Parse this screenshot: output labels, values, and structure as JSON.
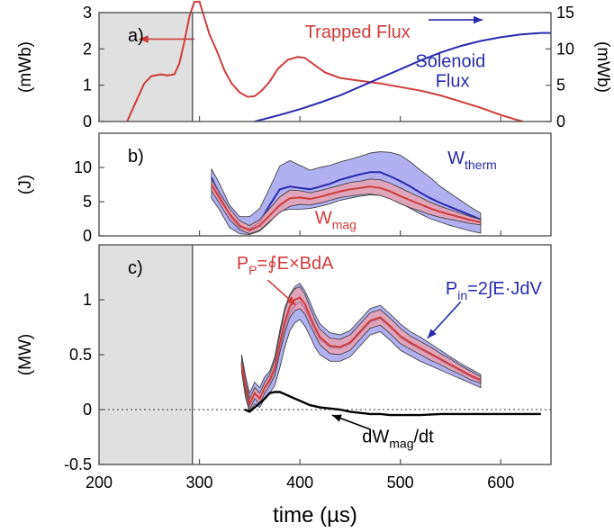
{
  "colors": {
    "red": "#d03c3c",
    "blue": "#2a2ab0",
    "black": "#000000",
    "gray": "#e0e0e0",
    "band_blue": "#a8a8f0",
    "band_red": "#f0a0a8"
  },
  "xaxis": {
    "label": "time (µs)",
    "ticks": [
      "200",
      "300",
      "400",
      "500",
      "600"
    ]
  },
  "chart_data": [
    {
      "type": "line",
      "panel": "a)",
      "xlim": [
        200,
        650
      ],
      "ylim": [
        0,
        3
      ],
      "ylabel": "(mWb)",
      "ylabel_right": "(mWb)",
      "yticks": [
        "0",
        "1",
        "2",
        "3"
      ],
      "yticks_right": [
        "0",
        "5",
        "10",
        "15"
      ],
      "ylim_right": [
        0,
        15
      ],
      "shaded_region": [
        200,
        293
      ],
      "annotations": [
        {
          "text": "Trapped Flux",
          "x": 405,
          "y": 2.3,
          "color": "red"
        },
        {
          "text": "Solenoid",
          "x": 515,
          "y": 1.5,
          "color": "blue"
        },
        {
          "text": "Flux",
          "x": 535,
          "y": 0.95,
          "color": "blue"
        }
      ],
      "series": [
        {
          "name": "Trapped Flux",
          "color": "red",
          "x": [
            228,
            236,
            245,
            252,
            258,
            262,
            268,
            275,
            280,
            285,
            290,
            295,
            300,
            305,
            310,
            318,
            325,
            332,
            340,
            348,
            355,
            362,
            370,
            378,
            388,
            398,
            405,
            415,
            425,
            440,
            460,
            480,
            500,
            520,
            540,
            560,
            580,
            600,
            612,
            622
          ],
          "y": [
            0.0,
            0.5,
            1.05,
            1.25,
            1.28,
            1.3,
            1.27,
            1.3,
            1.6,
            2.2,
            2.9,
            3.3,
            3.3,
            2.85,
            2.4,
            1.9,
            1.4,
            1.05,
            0.8,
            0.68,
            0.7,
            0.85,
            1.1,
            1.45,
            1.7,
            1.78,
            1.75,
            1.55,
            1.35,
            1.2,
            1.12,
            1.05,
            0.95,
            0.85,
            0.72,
            0.55,
            0.38,
            0.18,
            0.08,
            0.0
          ]
        },
        {
          "name": "Solenoid Flux",
          "color": "blue",
          "axis": "right",
          "x": [
            355,
            380,
            400,
            420,
            440,
            460,
            480,
            500,
            520,
            540,
            560,
            580,
            600,
            620,
            640,
            650
          ],
          "y": [
            0.0,
            0.9,
            1.7,
            2.6,
            3.6,
            4.8,
            6.0,
            7.2,
            8.4,
            9.5,
            10.4,
            11.1,
            11.6,
            12.0,
            12.2,
            12.2
          ]
        }
      ],
      "arrows": [
        {
          "color": "red",
          "x_from": 295,
          "x_to": 240,
          "y": 2.27
        },
        {
          "color": "blue",
          "x_from": 528,
          "x_to": 582,
          "y": 2.8
        }
      ]
    },
    {
      "type": "area",
      "panel": "b)",
      "xlim": [
        200,
        650
      ],
      "ylim": [
        0,
        15
      ],
      "ylabel": "(J)",
      "yticks": [
        "0",
        "5",
        "10"
      ],
      "annotations": [
        {
          "text": "W",
          "sub": "therm",
          "x": 547,
          "y": 10.5,
          "color": "blue"
        },
        {
          "text": "W",
          "sub": "mag",
          "x": 415,
          "y": 1.8,
          "color": "red"
        }
      ],
      "x": [
        312,
        320,
        330,
        340,
        350,
        360,
        370,
        380,
        390,
        400,
        410,
        420,
        430,
        440,
        450,
        460,
        470,
        480,
        490,
        500,
        510,
        520,
        530,
        540,
        550,
        560,
        570,
        580
      ],
      "series": [
        {
          "name": "W_therm",
          "color": "blue",
          "mean": [
            8.5,
            6.0,
            3.0,
            1.2,
            1.0,
            2.0,
            4.5,
            6.8,
            7.2,
            7.0,
            6.8,
            7.2,
            7.6,
            8.2,
            8.6,
            9.0,
            9.3,
            9.3,
            8.7,
            8.0,
            7.2,
            6.3,
            5.5,
            4.8,
            4.2,
            3.6,
            3.0,
            2.4
          ],
          "upper": [
            9.8,
            7.6,
            4.5,
            2.8,
            2.8,
            4.0,
            7.0,
            10.2,
            11.0,
            10.3,
            9.6,
            10.0,
            10.3,
            10.8,
            11.2,
            11.6,
            12.1,
            12.3,
            12.2,
            11.8,
            10.8,
            9.6,
            8.5,
            7.2,
            6.2,
            5.2,
            4.2,
            3.3
          ],
          "lower": [
            5.5,
            3.8,
            1.2,
            0.3,
            0.2,
            0.7,
            2.0,
            3.6,
            3.9,
            3.9,
            4.0,
            4.3,
            4.7,
            5.2,
            5.5,
            5.8,
            6.0,
            5.9,
            5.4,
            4.8,
            4.0,
            3.2,
            2.5,
            2.0,
            1.5,
            1.1,
            0.7,
            0.4
          ]
        },
        {
          "name": "W_mag",
          "color": "red",
          "mean": [
            7.5,
            5.5,
            3.2,
            1.5,
            0.8,
            1.5,
            3.0,
            4.5,
            5.5,
            5.6,
            5.4,
            5.7,
            6.1,
            6.5,
            6.8,
            7.0,
            7.2,
            7.0,
            6.5,
            5.8,
            5.2,
            4.6,
            4.0,
            3.5,
            3.1,
            2.7,
            2.3,
            2.0
          ],
          "upper": [
            8.3,
            6.3,
            4.0,
            2.2,
            1.5,
            2.4,
            4.0,
            5.7,
            6.7,
            6.6,
            6.3,
            6.6,
            7.0,
            7.4,
            7.8,
            8.0,
            8.3,
            8.2,
            7.7,
            7.0,
            6.3,
            5.6,
            4.9,
            4.3,
            3.8,
            3.3,
            2.8,
            2.4
          ],
          "lower": [
            6.6,
            4.7,
            2.4,
            0.9,
            0.3,
            0.8,
            2.1,
            3.4,
            4.3,
            4.6,
            4.5,
            4.8,
            5.2,
            5.6,
            5.8,
            6.0,
            6.1,
            5.9,
            5.4,
            4.7,
            4.1,
            3.6,
            3.1,
            2.7,
            2.4,
            2.1,
            1.8,
            1.6
          ]
        }
      ]
    },
    {
      "type": "area",
      "panel": "c)",
      "xlim": [
        200,
        650
      ],
      "ylim": [
        -0.5,
        1.5
      ],
      "ylabel": "(MW)",
      "yticks": [
        "-0.5",
        "0",
        "0.5",
        "1"
      ],
      "shaded_region": [
        200,
        293
      ],
      "annotations": [
        {
          "text": "P",
          "sub": "P",
          "suffix": "=∮E×BdA",
          "x": 337,
          "y": 1.28,
          "color": "red"
        },
        {
          "text": "P",
          "sub": "in",
          "suffix": "=2∫E·JdV",
          "x": 545,
          "y": 1.05,
          "color": "blue"
        },
        {
          "text": "dW",
          "sub": "mag",
          "suffix": "/dt",
          "x": 462,
          "y": -0.3,
          "color": "black"
        }
      ],
      "x": [
        342,
        346,
        350,
        355,
        360,
        365,
        370,
        375,
        380,
        385,
        390,
        395,
        400,
        405,
        410,
        415,
        420,
        430,
        440,
        450,
        460,
        470,
        480,
        490,
        500,
        510,
        520,
        530,
        540,
        550,
        560,
        570,
        580
      ],
      "series": [
        {
          "name": "P_in",
          "color": "blue",
          "mean": [
            0.42,
            0.2,
            0.05,
            0.15,
            0.1,
            0.2,
            0.25,
            0.35,
            0.55,
            0.75,
            0.88,
            0.95,
            0.98,
            0.92,
            0.82,
            0.72,
            0.64,
            0.57,
            0.56,
            0.6,
            0.7,
            0.8,
            0.83,
            0.75,
            0.66,
            0.6,
            0.55,
            0.5,
            0.45,
            0.4,
            0.35,
            0.3,
            0.26
          ],
          "upper": [
            0.5,
            0.3,
            0.15,
            0.25,
            0.2,
            0.3,
            0.35,
            0.48,
            0.72,
            0.93,
            1.05,
            1.12,
            1.15,
            1.08,
            0.98,
            0.87,
            0.78,
            0.7,
            0.68,
            0.72,
            0.82,
            0.92,
            0.95,
            0.87,
            0.78,
            0.71,
            0.66,
            0.6,
            0.54,
            0.48,
            0.42,
            0.37,
            0.32
          ],
          "lower": [
            0.34,
            0.1,
            -0.02,
            0.05,
            0.02,
            0.1,
            0.15,
            0.22,
            0.38,
            0.57,
            0.72,
            0.79,
            0.82,
            0.76,
            0.67,
            0.57,
            0.5,
            0.44,
            0.44,
            0.48,
            0.58,
            0.68,
            0.71,
            0.63,
            0.54,
            0.49,
            0.44,
            0.4,
            0.36,
            0.32,
            0.28,
            0.24,
            0.2
          ]
        },
        {
          "name": "P_P",
          "color": "red",
          "mean": [
            0.42,
            0.2,
            0.05,
            0.15,
            0.1,
            0.2,
            0.27,
            0.38,
            0.6,
            0.8,
            0.94,
            1.0,
            1.02,
            0.96,
            0.85,
            0.75,
            0.66,
            0.58,
            0.57,
            0.61,
            0.71,
            0.81,
            0.84,
            0.76,
            0.67,
            0.61,
            0.56,
            0.51,
            0.46,
            0.41,
            0.36,
            0.31,
            0.27
          ],
          "upper": [
            0.46,
            0.25,
            0.1,
            0.2,
            0.15,
            0.25,
            0.32,
            0.45,
            0.68,
            0.9,
            1.04,
            1.1,
            1.12,
            1.05,
            0.93,
            0.82,
            0.73,
            0.65,
            0.64,
            0.68,
            0.78,
            0.88,
            0.91,
            0.83,
            0.74,
            0.67,
            0.62,
            0.57,
            0.51,
            0.46,
            0.4,
            0.35,
            0.3
          ],
          "lower": [
            0.38,
            0.15,
            0.0,
            0.1,
            0.05,
            0.15,
            0.22,
            0.31,
            0.52,
            0.7,
            0.84,
            0.9,
            0.92,
            0.87,
            0.77,
            0.68,
            0.59,
            0.51,
            0.5,
            0.54,
            0.64,
            0.74,
            0.77,
            0.69,
            0.6,
            0.55,
            0.5,
            0.45,
            0.41,
            0.36,
            0.32,
            0.27,
            0.24
          ]
        },
        {
          "name": "dWmag/dt",
          "color": "black",
          "line_only": true,
          "x": [
            345,
            350,
            355,
            360,
            365,
            370,
            375,
            380,
            385,
            390,
            395,
            400,
            405,
            410,
            420,
            430,
            440,
            450,
            460,
            470,
            480,
            490,
            500,
            520,
            540,
            560,
            580,
            600,
            620,
            640
          ],
          "y": [
            0.0,
            -0.02,
            0.02,
            0.06,
            0.1,
            0.15,
            0.16,
            0.16,
            0.14,
            0.12,
            0.1,
            0.08,
            0.06,
            0.04,
            0.02,
            0.01,
            0.0,
            -0.02,
            -0.03,
            -0.04,
            -0.04,
            -0.05,
            -0.05,
            -0.05,
            -0.04,
            -0.04,
            -0.04,
            -0.04,
            -0.04,
            -0.04
          ]
        }
      ],
      "reference_line": {
        "y": 0,
        "style": "dotted"
      },
      "arrows": [
        {
          "color": "red",
          "x_from": 368,
          "y_from": 1.18,
          "x_to": 396,
          "y_to": 0.95
        },
        {
          "color": "blue",
          "x_from": 560,
          "y_from": 0.98,
          "x_to": 527,
          "y_to": 0.65
        },
        {
          "color": "black",
          "x_from": 470,
          "y_from": -0.18,
          "x_to": 432,
          "y_to": -0.05
        }
      ]
    }
  ]
}
